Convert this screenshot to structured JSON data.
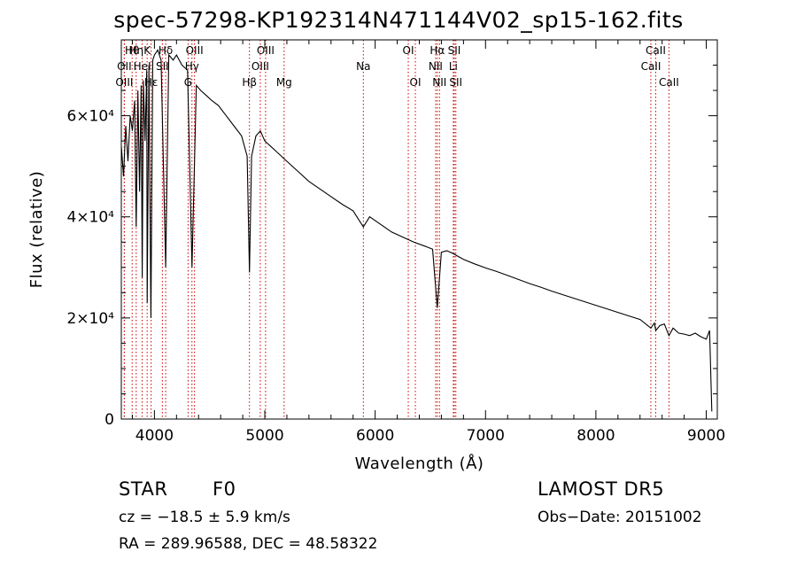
{
  "chart_data": {
    "type": "line",
    "title": "spec-57298-KP192314N471144V02_sp15-162.fits",
    "xlabel": "Wavelength (Å)",
    "ylabel": "Flux (relative)",
    "xlim": [
      3700,
      9100
    ],
    "ylim": [
      0,
      75000
    ],
    "x_ticks": [
      4000,
      5000,
      6000,
      7000,
      8000,
      9000
    ],
    "x_tick_labels": [
      "4000",
      "5000",
      "6000",
      "7000",
      "8000",
      "9000"
    ],
    "y_ticks": [
      0,
      20000,
      40000,
      60000
    ],
    "y_tick_labels": [
      "0",
      "2×10⁴",
      "4×10⁴",
      "6×10⁴"
    ],
    "grid": false,
    "series": [
      {
        "color": "#000000",
        "x": [
          3700,
          3720,
          3740,
          3760,
          3780,
          3800,
          3820,
          3835,
          3850,
          3865,
          3880,
          3889,
          3900,
          3915,
          3930,
          3934,
          3950,
          3968,
          3985,
          4000,
          4030,
          4060,
          4102,
          4130,
          4170,
          4200,
          4250,
          4300,
          4340,
          4380,
          4420,
          4470,
          4520,
          4580,
          4650,
          4720,
          4790,
          4840,
          4861,
          4880,
          4920,
          4960,
          5000,
          5050,
          5100,
          5200,
          5300,
          5400,
          5500,
          5600,
          5700,
          5800,
          5893,
          5950,
          6050,
          6150,
          6250,
          6350,
          6450,
          6520,
          6563,
          6600,
          6650,
          6700,
          6800,
          6900,
          7000,
          7100,
          7200,
          7300,
          7400,
          7500,
          7600,
          7700,
          7800,
          7900,
          8000,
          8100,
          8200,
          8300,
          8400,
          8498,
          8530,
          8542,
          8580,
          8620,
          8662,
          8700,
          8750,
          8800,
          8850,
          8900,
          8950,
          9000,
          9030,
          9050
        ],
        "y": [
          54000,
          48000,
          58000,
          51000,
          60000,
          57000,
          63000,
          38000,
          65000,
          45000,
          66000,
          28000,
          67000,
          55000,
          69000,
          23000,
          70000,
          20000,
          71000,
          72000,
          73000,
          71000,
          30000,
          72000,
          71000,
          72000,
          70000,
          69000,
          30000,
          66000,
          65000,
          64000,
          63000,
          62000,
          60000,
          58000,
          56000,
          52000,
          29000,
          52000,
          56000,
          57000,
          55000,
          54000,
          53000,
          51000,
          49000,
          47000,
          45500,
          44000,
          42500,
          41200,
          38000,
          40000,
          38500,
          37000,
          36000,
          35000,
          34200,
          33600,
          22000,
          33000,
          33300,
          32800,
          31600,
          30700,
          29900,
          29200,
          28400,
          27600,
          26800,
          26100,
          25300,
          24600,
          23900,
          23200,
          22500,
          21800,
          21100,
          20400,
          19700,
          18000,
          19000,
          17500,
          18500,
          18800,
          16500,
          18000,
          17000,
          16800,
          16500,
          17000,
          16300,
          15800,
          17500,
          1500
        ]
      }
    ],
    "annotations": [
      {
        "label": "Hθ",
        "wavelength": 3798
      },
      {
        "label": "OII",
        "wavelength": 3727
      },
      {
        "label": "OIII",
        "wavelength": 3727
      },
      {
        "label": "Hη",
        "wavelength": 3835
      },
      {
        "label": "K",
        "wavelength": 3934
      },
      {
        "label": "HeI",
        "wavelength": 3889
      },
      {
        "label": "Hε",
        "wavelength": 3970
      },
      {
        "label": "Hδ",
        "wavelength": 4102
      },
      {
        "label": "SII",
        "wavelength": 4072
      },
      {
        "label": "OIII",
        "wavelength": 4363
      },
      {
        "label": "Hγ",
        "wavelength": 4340
      },
      {
        "label": "G",
        "wavelength": 4305
      },
      {
        "label": "Hβ",
        "wavelength": 4861
      },
      {
        "label": "OIII",
        "wavelength": 5007
      },
      {
        "label": "OIII",
        "wavelength": 4959
      },
      {
        "label": "Mg",
        "wavelength": 5175
      },
      {
        "label": "Na",
        "wavelength": 5893
      },
      {
        "label": "OI",
        "wavelength": 6300
      },
      {
        "label": "OI",
        "wavelength": 6364
      },
      {
        "label": "Hα",
        "wavelength": 6563
      },
      {
        "label": "NII",
        "wavelength": 6548
      },
      {
        "label": "NII",
        "wavelength": 6583
      },
      {
        "label": "SII",
        "wavelength": 6717
      },
      {
        "label": "Li",
        "wavelength": 6708
      },
      {
        "label": "SII",
        "wavelength": 6731
      },
      {
        "label": "CaII",
        "wavelength": 8542
      },
      {
        "label": "CaII",
        "wavelength": 8498
      },
      {
        "label": "CaII",
        "wavelength": 8662
      }
    ]
  },
  "info": {
    "class": "STAR",
    "subclass": "F0",
    "survey": "LAMOST DR5",
    "cz": "cz = −18.5 ± 5.9 km/s",
    "obs_date": "Obs−Date: 20151002",
    "coords": "RA = 289.96588, DEC =  48.58322"
  }
}
